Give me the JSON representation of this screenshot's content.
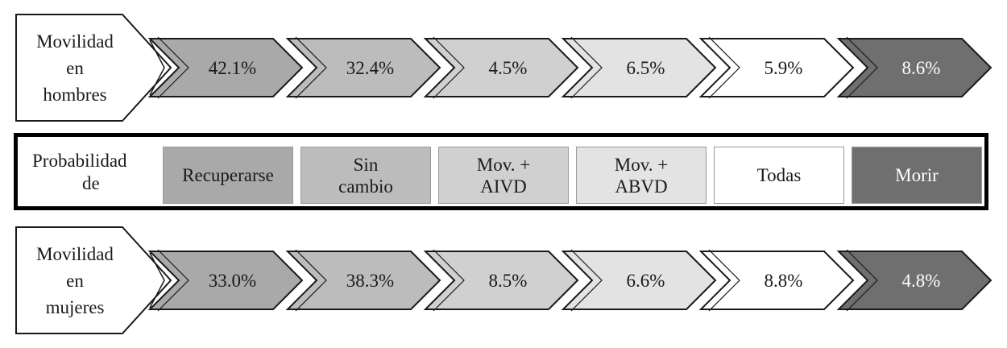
{
  "rows": [
    {
      "label_lines": [
        "Movilidad",
        "en",
        "hombres"
      ],
      "values": [
        "42.1%",
        "32.4%",
        "4.5%",
        "6.5%",
        "5.9%",
        "8.6%"
      ]
    },
    {
      "label_lines": [
        "Movilidad",
        "en",
        "mujeres"
      ],
      "values": [
        "33.0%",
        "38.3%",
        "8.5%",
        "6.6%",
        "8.8%",
        "4.8%"
      ]
    }
  ],
  "legend": {
    "title_lines": [
      "Probabilidad",
      "de"
    ],
    "categories": [
      {
        "lines": [
          "Recuperarse"
        ],
        "color": "#a9a9a9",
        "text_color": "#1a1a1a"
      },
      {
        "lines": [
          "Sin",
          "cambio"
        ],
        "color": "#bcbcbc",
        "text_color": "#1a1a1a"
      },
      {
        "lines": [
          "Mov. +",
          "AIVD"
        ],
        "color": "#d0d0d0",
        "text_color": "#1a1a1a"
      },
      {
        "lines": [
          "Mov. +",
          "ABVD"
        ],
        "color": "#e3e3e3",
        "text_color": "#1a1a1a"
      },
      {
        "lines": [
          "Todas"
        ],
        "color": "#ffffff",
        "text_color": "#1a1a1a"
      },
      {
        "lines": [
          "Morir"
        ],
        "color": "#6f6f6f",
        "text_color": "#ffffff"
      }
    ]
  }
}
